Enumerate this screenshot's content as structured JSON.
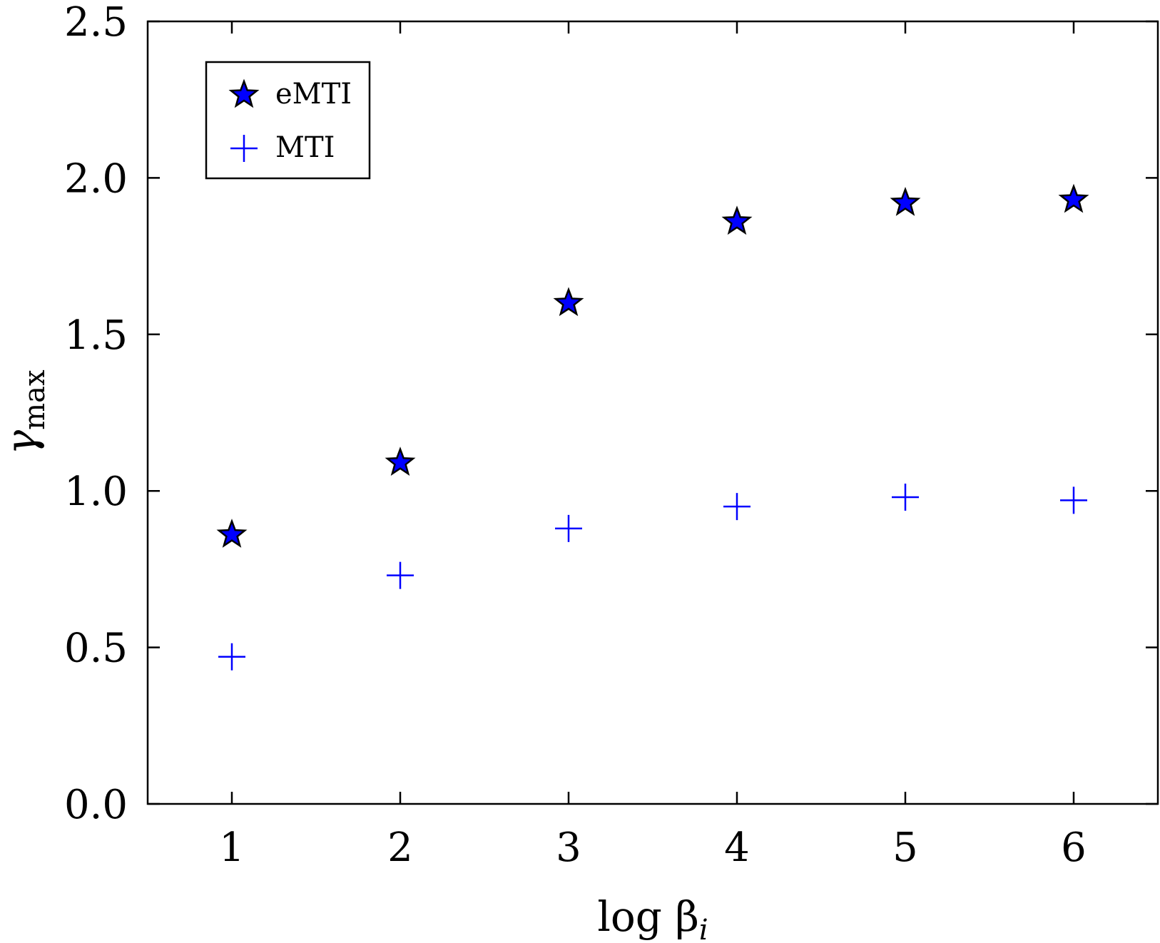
{
  "chart_data": {
    "type": "scatter",
    "title": "",
    "xlabel": "log β",
    "xlabel_sub": "i",
    "ylabel": "γ",
    "ylabel_sub": "max",
    "xlim": [
      0.5,
      6.5
    ],
    "ylim": [
      0.0,
      2.5
    ],
    "xticks": [
      1,
      2,
      3,
      4,
      5,
      6
    ],
    "xtick_labels": [
      "1",
      "2",
      "3",
      "4",
      "5",
      "6"
    ],
    "yticks": [
      0.0,
      0.5,
      1.0,
      1.5,
      2.0,
      2.5
    ],
    "ytick_labels": [
      "0.0",
      "0.5",
      "1.0",
      "1.5",
      "2.0",
      "2.5"
    ],
    "grid": false,
    "legend_position": "top-left",
    "series": [
      {
        "name": "eMTI",
        "marker": "star",
        "color": "#0000ff",
        "edge_color": "#000000",
        "x": [
          1,
          2,
          3,
          4,
          5,
          6
        ],
        "y": [
          0.86,
          1.09,
          1.6,
          1.86,
          1.92,
          1.93
        ]
      },
      {
        "name": "MTI",
        "marker": "plus",
        "color": "#0000ff",
        "x": [
          1,
          2,
          3,
          4,
          5,
          6
        ],
        "y": [
          0.47,
          0.73,
          0.88,
          0.95,
          0.98,
          0.97
        ]
      }
    ]
  }
}
